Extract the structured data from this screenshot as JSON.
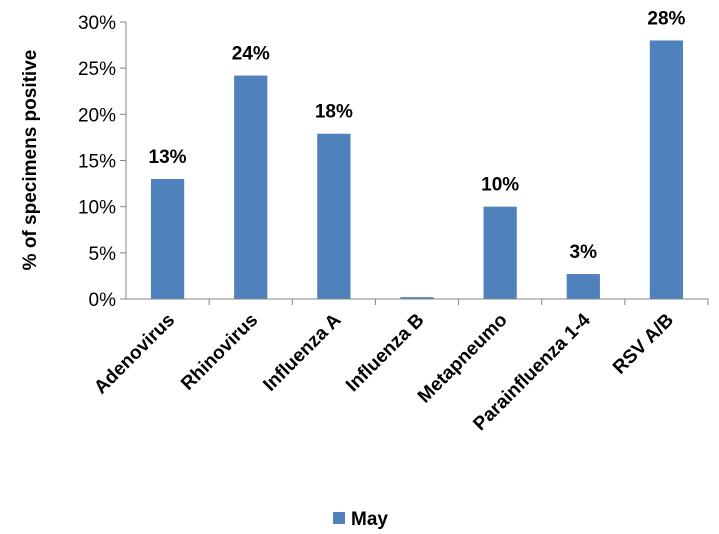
{
  "chart_data": {
    "type": "bar",
    "categories": [
      "Adenovirus",
      "Rhinovirus",
      "Influenza A",
      "Influenza B",
      "Metapneumo",
      "Parainfluenza 1-4",
      "RSV A/B"
    ],
    "series": [
      {
        "name": "May",
        "values": [
          13,
          24.2,
          17.9,
          0.2,
          10,
          2.7,
          28
        ],
        "labels": [
          "13%",
          "24%",
          "18%",
          "",
          "10%",
          "3%",
          "28%"
        ]
      }
    ],
    "title": "",
    "xlabel": "",
    "ylabel": "% of specimens positive",
    "ylim": [
      0,
      30
    ],
    "yticks": [
      0,
      5,
      10,
      15,
      20,
      25,
      30
    ],
    "ytick_labels": [
      "0%",
      "5%",
      "10%",
      "15%",
      "20%",
      "25%",
      "30%"
    ],
    "grid": false,
    "legend_position": "bottom",
    "bar_color": "#4F81BD"
  }
}
